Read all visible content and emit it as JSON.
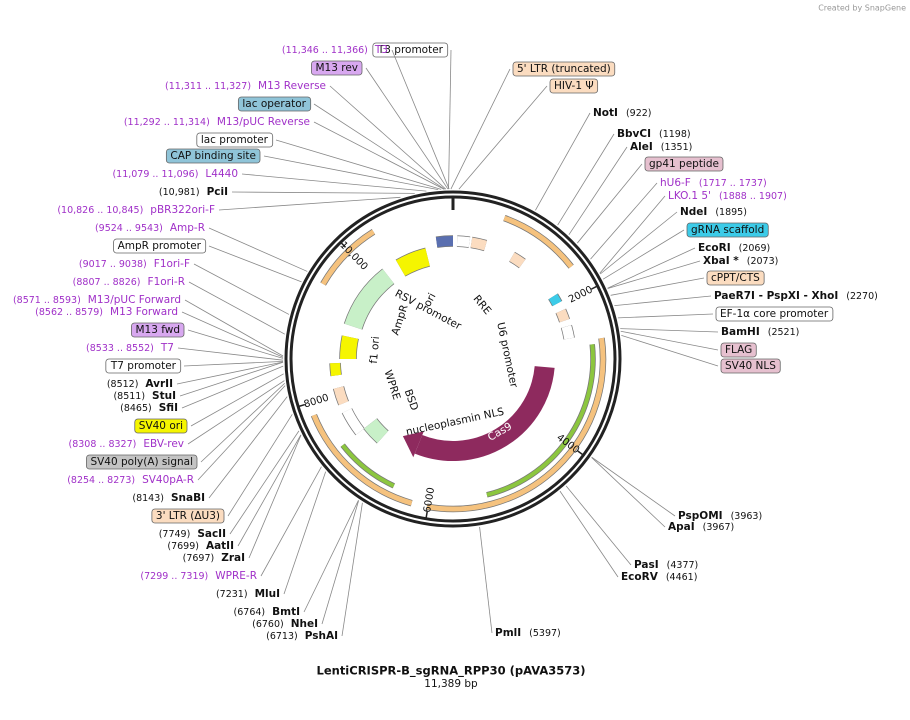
{
  "created_by": "Created by SnapGene",
  "title": "LentiCRISPR-B_sgRNA_RPP30 (pAVA3573)",
  "subtitle": "11,389 bp",
  "ring_ticks": [
    "2000",
    "4000",
    "6000",
    "8000",
    "10,000"
  ],
  "features": [
    "ori",
    "AmpR",
    "f1 ori",
    "RSV promoter",
    "RRE",
    "U6 promoter",
    "Cas9",
    "nucleoplasmin NLS",
    "BSD",
    "WPRE"
  ],
  "labels": [
    {
      "name": "T3 promoter",
      "fill": "#ffffff"
    },
    {
      "name": "5' LTR (truncated)",
      "fill": "#fbdcc0"
    },
    {
      "name": "HIV-1 Ψ",
      "fill": "#fbdcc0"
    },
    {
      "name": "NotI",
      "position": "(922)"
    },
    {
      "name": "BbvCI",
      "position": "(1198)"
    },
    {
      "name": "AleI",
      "position": "(1351)"
    },
    {
      "name": "gp41 peptide",
      "fill": "#e6c0cf"
    },
    {
      "name": "hU6-F",
      "position": "(1717 .. 1737)",
      "color": "#a030c8"
    },
    {
      "name": "LKO.1 5'",
      "position": "(1888 .. 1907)",
      "color": "#a030c8"
    },
    {
      "name": "NdeI",
      "position": "(1895)"
    },
    {
      "name": "gRNA scaffold",
      "fill": "#3ccbe8"
    },
    {
      "name": "EcoRI",
      "position": "(2069)"
    },
    {
      "name": "XbaI *",
      "position": "(2073)"
    },
    {
      "name": "cPPT/CTS",
      "fill": "#fbdcc0"
    },
    {
      "name": "PaeR7I  - PspXI  - XhoI",
      "position": "(2270)"
    },
    {
      "name": "EF-1α core promoter",
      "fill": "#ffffff"
    },
    {
      "name": "BamHI",
      "position": "(2521)"
    },
    {
      "name": "FLAG",
      "fill": "#e6c0cf"
    },
    {
      "name": "SV40 NLS",
      "fill": "#e6c0cf"
    },
    {
      "name": "PspOMI",
      "position": "(3963)"
    },
    {
      "name": "ApaI",
      "position": "(3967)"
    },
    {
      "name": "PasI",
      "position": "(4377)"
    },
    {
      "name": "EcoRV",
      "position": "(4461)"
    },
    {
      "name": "PmlI",
      "position": "(5397)"
    },
    {
      "name": "T3",
      "position": "(11,346 .. 11,366)",
      "color": "#a030c8"
    },
    {
      "name": "M13 rev",
      "fill": "#d8a8f0"
    },
    {
      "name": "M13 Reverse",
      "position": "(11,311 .. 11,327)",
      "color": "#a030c8"
    },
    {
      "name": "lac operator",
      "fill": "#8fc4d8"
    },
    {
      "name": "M13/pUC Reverse",
      "position": "(11,292 .. 11,314)",
      "color": "#a030c8"
    },
    {
      "name": "lac promoter",
      "fill": "#ffffff"
    },
    {
      "name": "CAP binding site",
      "fill": "#8fc4d8"
    },
    {
      "name": "L4440",
      "position": "(11,079 .. 11,096)",
      "color": "#a030c8"
    },
    {
      "name": "PciI",
      "position": "(10,981)"
    },
    {
      "name": "pBR322ori-F",
      "position": "(10,826 .. 10,845)",
      "color": "#a030c8"
    },
    {
      "name": "Amp-R",
      "position": "(9524 .. 9543)",
      "color": "#a030c8"
    },
    {
      "name": "AmpR promoter",
      "fill": "#ffffff"
    },
    {
      "name": "F1ori-F",
      "position": "(9017 .. 9038)",
      "color": "#a030c8"
    },
    {
      "name": "F1ori-R",
      "position": "(8807 .. 8826)",
      "color": "#a030c8"
    },
    {
      "name": "M13/pUC Forward",
      "position": "(8571 .. 8593)",
      "color": "#a030c8"
    },
    {
      "name": "M13 Forward",
      "position": "(8562 .. 8579)",
      "color": "#a030c8"
    },
    {
      "name": "M13 fwd",
      "fill": "#d8a8f0"
    },
    {
      "name": "T7",
      "position": "(8533 .. 8552)",
      "color": "#a030c8"
    },
    {
      "name": "T7 promoter",
      "fill": "#ffffff"
    },
    {
      "name": "AvrII",
      "position": "(8512)"
    },
    {
      "name": "StuI",
      "position": "(8511)"
    },
    {
      "name": "SfiI",
      "position": "(8465)"
    },
    {
      "name": "SV40 ori",
      "fill": "#f5f500"
    },
    {
      "name": "EBV-rev",
      "position": "(8308 .. 8327)",
      "color": "#a030c8"
    },
    {
      "name": "SV40 poly(A) signal",
      "fill": "#c4c4c4"
    },
    {
      "name": "SV40pA-R",
      "position": "(8254 .. 8273)",
      "color": "#a030c8"
    },
    {
      "name": "SnaBI",
      "position": "(8143)"
    },
    {
      "name": "3' LTR (ΔU3)",
      "fill": "#fbdcc0"
    },
    {
      "name": "SacII",
      "position": "(7749)"
    },
    {
      "name": "AatII",
      "position": "(7699)"
    },
    {
      "name": "ZraI",
      "position": "(7697)"
    },
    {
      "name": "WPRE-R",
      "position": "(7299 .. 7319)",
      "color": "#a030c8"
    },
    {
      "name": "MluI",
      "position": "(7231)"
    },
    {
      "name": "BmtI",
      "position": "(6764)"
    },
    {
      "name": "NheI",
      "position": "(6760)"
    },
    {
      "name": "PshAI",
      "position": "(6713)"
    }
  ]
}
